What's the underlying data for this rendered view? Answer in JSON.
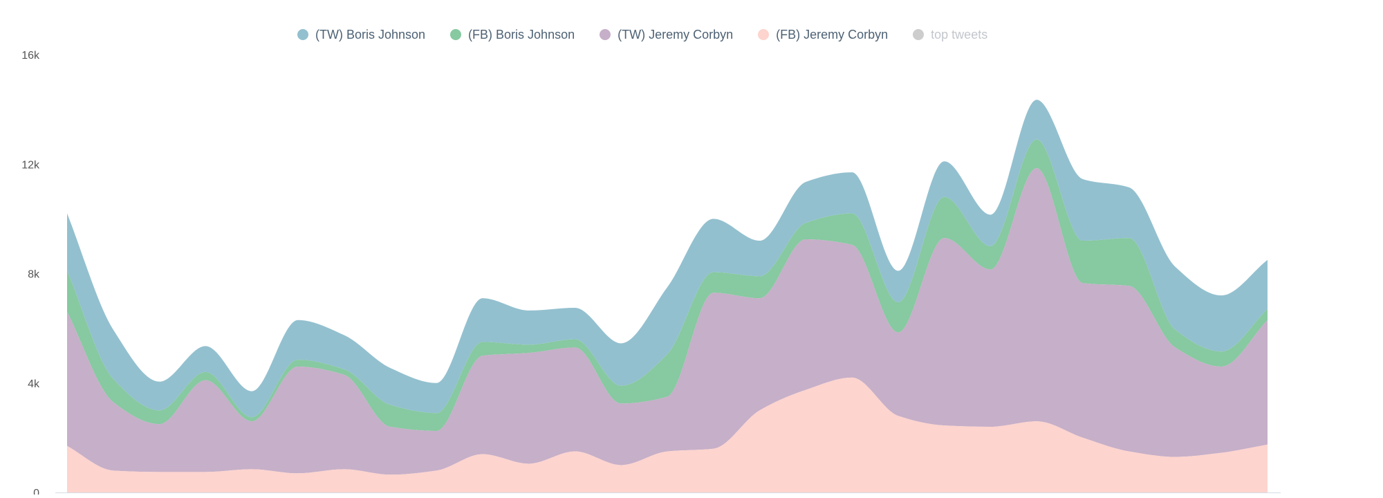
{
  "chart_data": {
    "type": "area",
    "stacked": true,
    "title": "",
    "xlabel": "",
    "ylabel": "",
    "ylim": [
      0,
      16000
    ],
    "y_ticks": [
      {
        "value": 0,
        "label": "0"
      },
      {
        "value": 4000,
        "label": "4k"
      },
      {
        "value": 8000,
        "label": "8k"
      },
      {
        "value": 12000,
        "label": "12k"
      },
      {
        "value": 16000,
        "label": "16k"
      }
    ],
    "grid": false,
    "legend_position": "top-center",
    "series": [
      {
        "name": "(FB) Jeremy Corbyn",
        "color": "#fdd4ce",
        "values": [
          1700,
          800,
          750,
          750,
          850,
          700,
          850,
          650,
          800,
          1400,
          1050,
          1500,
          1000,
          1500,
          1600,
          3000,
          3750,
          4200,
          2800,
          2450,
          2400,
          2600,
          2000,
          1500,
          1300,
          1450,
          1750
        ]
      },
      {
        "name": "(TW) Jeremy Corbyn",
        "color": "#c6afc8",
        "values": [
          4900,
          2500,
          1750,
          3350,
          1750,
          3900,
          3450,
          1750,
          1450,
          3600,
          4050,
          3800,
          2250,
          2000,
          5700,
          4100,
          5500,
          4850,
          3050,
          6850,
          5750,
          9250,
          5650,
          6050,
          4000,
          3150,
          4550
        ]
      },
      {
        "name": "(FB) Boris Johnson",
        "color": "#87c9a1",
        "values": [
          1500,
          850,
          500,
          300,
          150,
          250,
          200,
          800,
          650,
          500,
          300,
          300,
          650,
          1550,
          750,
          800,
          600,
          1150,
          1100,
          1500,
          850,
          1050,
          1550,
          1750,
          650,
          550,
          400
        ]
      },
      {
        "name": "(TW) Boris Johnson",
        "color": "#93c0cf",
        "values": [
          2100,
          1800,
          1050,
          950,
          950,
          1450,
          1250,
          1350,
          1100,
          1600,
          1250,
          1150,
          1550,
          2450,
          1950,
          1300,
          1500,
          1500,
          1150,
          1300,
          1150,
          1450,
          2250,
          1850,
          2300,
          2050,
          1800
        ]
      }
    ],
    "extra_legend": {
      "name": "top tweets",
      "color": "#cdcdcd",
      "inactive": true
    }
  }
}
